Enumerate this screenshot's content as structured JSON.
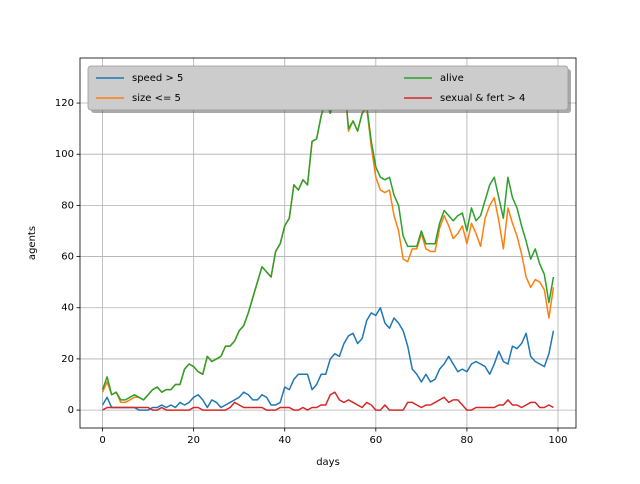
{
  "chart_data": {
    "type": "line",
    "xlabel": "days",
    "ylabel": "agents",
    "x": [
      0,
      1,
      2,
      3,
      4,
      5,
      6,
      7,
      8,
      9,
      10,
      11,
      12,
      13,
      14,
      15,
      16,
      17,
      18,
      19,
      20,
      21,
      22,
      23,
      24,
      25,
      26,
      27,
      28,
      29,
      30,
      31,
      32,
      33,
      34,
      35,
      36,
      37,
      38,
      39,
      40,
      41,
      42,
      43,
      44,
      45,
      46,
      47,
      48,
      49,
      50,
      51,
      52,
      53,
      54,
      55,
      56,
      57,
      58,
      59,
      60,
      61,
      62,
      63,
      64,
      65,
      66,
      67,
      68,
      69,
      70,
      71,
      72,
      73,
      74,
      75,
      76,
      77,
      78,
      79,
      80,
      81,
      82,
      83,
      84,
      85,
      86,
      87,
      88,
      89,
      90,
      91,
      92,
      93,
      94,
      95,
      96,
      97,
      98,
      99
    ],
    "series": [
      {
        "name": "speed > 5",
        "color": "#1f77b4",
        "values": [
          2,
          5,
          1,
          1,
          1,
          1,
          1,
          1,
          0,
          0,
          0,
          1,
          1,
          2,
          1,
          2,
          1,
          3,
          2,
          3,
          5,
          6,
          4,
          1,
          4,
          3,
          1,
          2,
          3,
          4,
          5,
          7,
          6,
          4,
          4,
          6,
          5,
          2,
          2,
          3,
          9,
          8,
          12,
          14,
          14,
          14,
          8,
          10,
          14,
          14,
          20,
          22,
          21,
          26,
          29,
          30,
          26,
          28,
          35,
          38,
          37,
          40,
          34,
          32,
          36,
          34,
          31,
          25,
          16,
          14,
          11,
          14,
          11,
          12,
          16,
          18,
          21,
          18,
          15,
          16,
          15,
          18,
          19,
          18,
          17,
          14,
          18,
          23,
          19,
          18,
          25,
          24,
          26,
          30,
          21,
          19,
          18,
          17,
          22,
          31
        ]
      },
      {
        "name": "size <= 5",
        "color": "#ff7f0e",
        "values": [
          7,
          11,
          6,
          7,
          3,
          3,
          4,
          5,
          5,
          4,
          6,
          8,
          9,
          7,
          8,
          8,
          10,
          10,
          16,
          18,
          17,
          15,
          14,
          21,
          19,
          20,
          21,
          25,
          25,
          27,
          31,
          33,
          38,
          44,
          50,
          56,
          54,
          52,
          62,
          65,
          72,
          75,
          88,
          86,
          90,
          88,
          105,
          106,
          115,
          121,
          116,
          122,
          118,
          131,
          109,
          113,
          109,
          116,
          118,
          103,
          91,
          86,
          85,
          86,
          76,
          70,
          59,
          58,
          63,
          63,
          69,
          63,
          62,
          62,
          71,
          76,
          72,
          67,
          69,
          72,
          65,
          73,
          69,
          64,
          75,
          80,
          83,
          74,
          63,
          79,
          73,
          68,
          61,
          52,
          48,
          51,
          50,
          47,
          36,
          48
        ]
      },
      {
        "name": "alive",
        "color": "#2ca02c",
        "values": [
          8,
          13,
          6,
          7,
          4,
          4,
          5,
          6,
          5,
          4,
          6,
          8,
          9,
          7,
          8,
          8,
          10,
          10,
          16,
          18,
          17,
          15,
          14,
          21,
          19,
          20,
          21,
          25,
          25,
          27,
          31,
          33,
          38,
          44,
          50,
          56,
          54,
          52,
          62,
          65,
          72,
          75,
          88,
          86,
          90,
          88,
          105,
          106,
          115,
          121,
          116,
          122,
          118,
          131,
          110,
          113,
          109,
          116,
          119,
          105,
          95,
          91,
          90,
          91,
          84,
          80,
          68,
          64,
          64,
          64,
          70,
          65,
          65,
          65,
          73,
          78,
          76,
          74,
          76,
          77,
          70,
          79,
          74,
          76,
          82,
          88,
          91,
          83,
          75,
          91,
          83,
          79,
          72,
          66,
          59,
          63,
          57,
          53,
          42,
          52
        ]
      },
      {
        "name": "sexual & fert > 4",
        "color": "#d62728",
        "values": [
          0,
          1,
          1,
          1,
          1,
          1,
          1,
          1,
          1,
          1,
          1,
          0,
          0,
          1,
          0,
          0,
          0,
          0,
          0,
          0,
          1,
          1,
          0,
          0,
          0,
          0,
          0,
          0,
          1,
          3,
          2,
          1,
          1,
          1,
          1,
          1,
          0,
          0,
          0,
          1,
          1,
          1,
          0,
          0,
          1,
          0,
          1,
          1,
          2,
          2,
          6,
          7,
          4,
          3,
          4,
          3,
          2,
          1,
          3,
          2,
          0,
          0,
          2,
          0,
          0,
          0,
          0,
          3,
          3,
          2,
          1,
          2,
          2,
          3,
          4,
          5,
          3,
          4,
          4,
          2,
          0,
          0,
          1,
          1,
          1,
          1,
          1,
          2,
          2,
          4,
          2,
          2,
          1,
          2,
          3,
          3,
          1,
          1,
          2,
          1
        ]
      }
    ],
    "xlim": [
      -4.95,
      103.95
    ],
    "xticks": [
      0,
      20,
      40,
      60,
      80,
      100
    ],
    "ylim": [
      -7,
      137.6
    ],
    "yticks": [
      0,
      20,
      40,
      60,
      80,
      100,
      120
    ],
    "grid": true,
    "legend": "upper center",
    "legend_columns": 2
  }
}
